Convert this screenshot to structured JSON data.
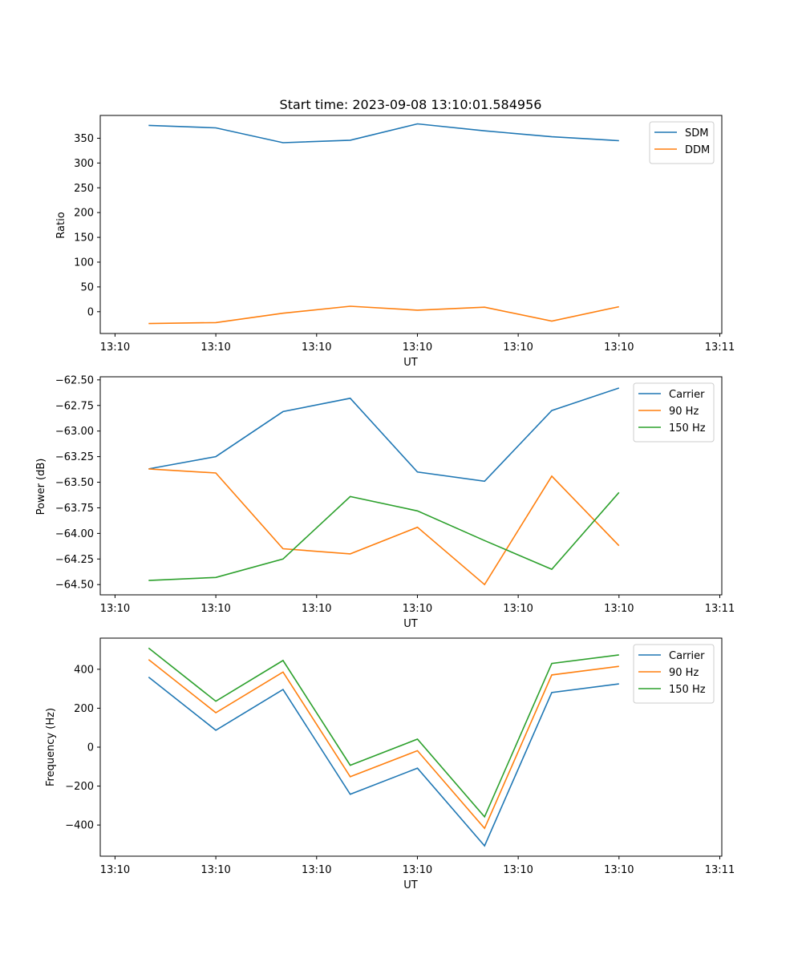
{
  "chart_data": [
    {
      "type": "line",
      "title": "Start time: 2023-09-08 13:10:01.584956",
      "xlabel": "UT",
      "ylabel": "Ratio",
      "x": [
        0,
        1,
        2,
        3,
        4,
        5,
        6,
        7
      ],
      "xlim": [
        -0.72,
        8.53
      ],
      "x_ticks": [
        {
          "x": -0.5,
          "label": "13:10"
        },
        {
          "x": 1,
          "label": "13:10"
        },
        {
          "x": 2.5,
          "label": "13:10"
        },
        {
          "x": 4,
          "label": "13:10"
        },
        {
          "x": 5.5,
          "label": "13:10"
        },
        {
          "x": 7,
          "label": "13:10"
        },
        {
          "x": 8.5,
          "label": "13:11"
        }
      ],
      "ylim": [
        -44,
        396
      ],
      "y_ticks": [
        0,
        50,
        100,
        150,
        200,
        250,
        300,
        350
      ],
      "y_tick_labels": [
        "0",
        "50",
        "100",
        "150",
        "200",
        "250",
        "300",
        "350"
      ],
      "legend": "top-right",
      "series": [
        {
          "name": "SDM",
          "color": "#1f77b4",
          "values": [
            376,
            371,
            341,
            346,
            379,
            365,
            353,
            345
          ]
        },
        {
          "name": "DDM",
          "color": "#ff7f0e",
          "values": [
            -24,
            -22,
            -3,
            11,
            3,
            9,
            -19,
            10
          ]
        }
      ]
    },
    {
      "type": "line",
      "title": "",
      "xlabel": "UT",
      "ylabel": "Power (dB)",
      "x": [
        0,
        1,
        2,
        3,
        4,
        5,
        6,
        7
      ],
      "xlim": [
        -0.72,
        8.53
      ],
      "x_ticks": [
        {
          "x": -0.5,
          "label": "13:10"
        },
        {
          "x": 1,
          "label": "13:10"
        },
        {
          "x": 2.5,
          "label": "13:10"
        },
        {
          "x": 4,
          "label": "13:10"
        },
        {
          "x": 5.5,
          "label": "13:10"
        },
        {
          "x": 7,
          "label": "13:10"
        },
        {
          "x": 8.5,
          "label": "13:11"
        }
      ],
      "ylim": [
        -64.6,
        -62.47
      ],
      "y_ticks": [
        -64.5,
        -64.25,
        -64.0,
        -63.75,
        -63.5,
        -63.25,
        -63.0,
        -62.75,
        -62.5
      ],
      "y_tick_labels": [
        "−64.50",
        "−64.25",
        "−64.00",
        "−63.75",
        "−63.50",
        "−63.25",
        "−63.00",
        "−62.75",
        "−62.50"
      ],
      "legend": "top-right",
      "series": [
        {
          "name": "Carrier",
          "color": "#1f77b4",
          "values": [
            -63.37,
            -63.25,
            -62.81,
            -62.68,
            -63.4,
            -63.49,
            -62.8,
            -62.58
          ]
        },
        {
          "name": "90 Hz",
          "color": "#ff7f0e",
          "values": [
            -63.37,
            -63.41,
            -64.15,
            -64.2,
            -63.94,
            -64.5,
            -63.44,
            -64.12
          ]
        },
        {
          "name": "150 Hz",
          "color": "#2ca02c",
          "values": [
            -64.46,
            -64.43,
            -64.25,
            -63.64,
            -63.78,
            -64.07,
            -64.35,
            -63.6
          ]
        }
      ]
    },
    {
      "type": "line",
      "title": "",
      "xlabel": "UT",
      "ylabel": "Frequency (Hz)",
      "x": [
        0,
        1,
        2,
        3,
        4,
        5,
        6,
        7
      ],
      "xlim": [
        -0.72,
        8.53
      ],
      "x_ticks": [
        {
          "x": -0.5,
          "label": "13:10"
        },
        {
          "x": 1,
          "label": "13:10"
        },
        {
          "x": 2.5,
          "label": "13:10"
        },
        {
          "x": 4,
          "label": "13:10"
        },
        {
          "x": 5.5,
          "label": "13:10"
        },
        {
          "x": 7,
          "label": "13:10"
        },
        {
          "x": 8.5,
          "label": "13:11"
        }
      ],
      "ylim": [
        -560,
        560
      ],
      "y_ticks": [
        -400,
        -200,
        0,
        200,
        400
      ],
      "y_tick_labels": [
        "−400",
        "−200",
        "0",
        "200",
        "400"
      ],
      "legend": "top-right",
      "series": [
        {
          "name": "Carrier",
          "color": "#1f77b4",
          "values": [
            360,
            87,
            296,
            -242,
            -108,
            -507,
            281,
            325
          ]
        },
        {
          "name": "90 Hz",
          "color": "#ff7f0e",
          "values": [
            450,
            177,
            386,
            -152,
            -18,
            -417,
            371,
            415
          ]
        },
        {
          "name": "150 Hz",
          "color": "#2ca02c",
          "values": [
            509,
            236,
            445,
            -93,
            41,
            -358,
            430,
            474
          ]
        }
      ]
    }
  ]
}
